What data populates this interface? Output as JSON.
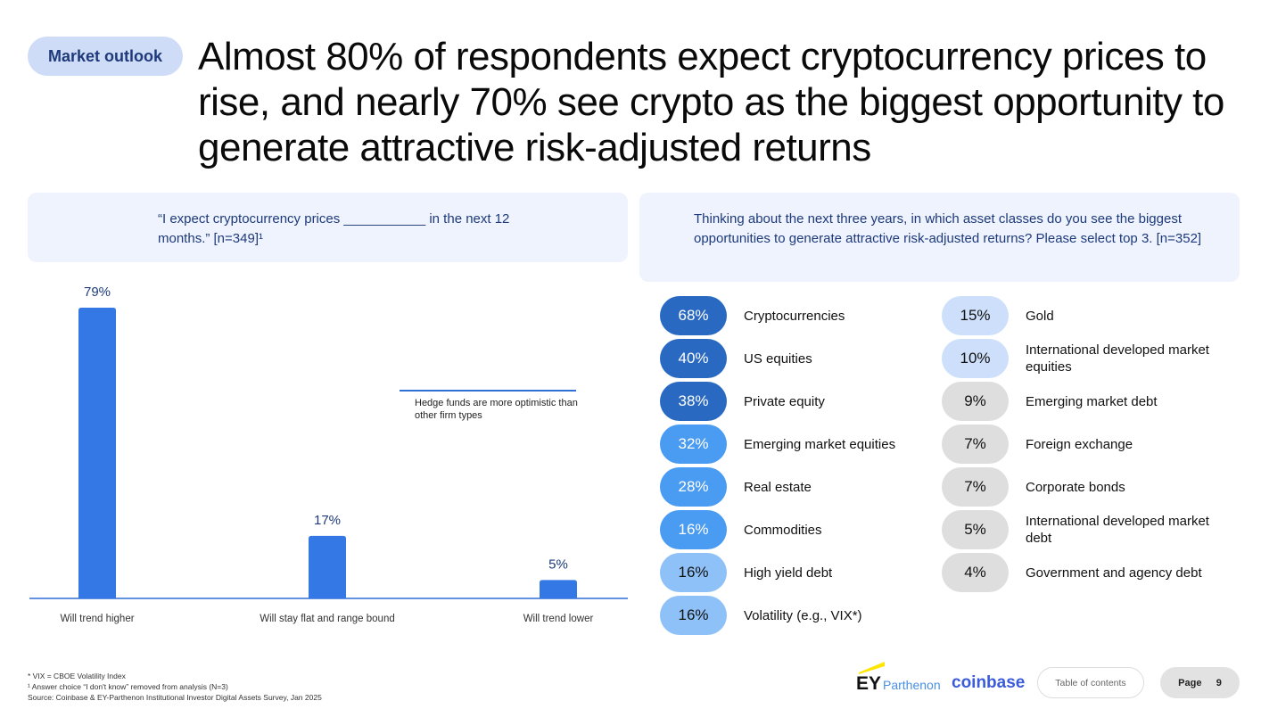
{
  "tag": "Market outlook",
  "title": "Almost 80% of respondents expect cryptocurrency prices to rise, and nearly 70% see crypto as the biggest opportunity to generate attractive risk-adjusted returns",
  "left_question": "“I expect cryptocurrency prices ___________ in the next 12 months.” [n=349]¹",
  "right_question": "Thinking about the next three years, in which asset classes do you see the biggest opportunities to generate attractive risk-adjusted returns? Please select top 3. [n=352]",
  "annotation": "Hedge funds are more optimistic than other firm types",
  "chart_data": {
    "type": "bar",
    "categories": [
      "Will trend higher",
      "Will stay flat and range bound",
      "Will trend lower"
    ],
    "values": [
      79,
      17,
      5
    ],
    "data_labels": [
      "79%",
      "17%",
      "5%"
    ],
    "ylim": [
      0,
      79
    ],
    "color": "#3478e5"
  },
  "asset_classes": [
    {
      "value": "68%",
      "label": "Cryptocurrencies",
      "bg": "#2a69c2",
      "fg": "#ffffff"
    },
    {
      "value": "40%",
      "label": "US equities",
      "bg": "#2a69c2",
      "fg": "#ffffff"
    },
    {
      "value": "38%",
      "label": "Private equity",
      "bg": "#2a69c2",
      "fg": "#ffffff"
    },
    {
      "value": "32%",
      "label": "Emerging market equities",
      "bg": "#4a9bf2",
      "fg": "#ffffff"
    },
    {
      "value": "28%",
      "label": "Real estate",
      "bg": "#4a9bf2",
      "fg": "#ffffff"
    },
    {
      "value": "16%",
      "label": "Commodities",
      "bg": "#4a9bf2",
      "fg": "#ffffff"
    },
    {
      "value": "16%",
      "label": "High yield debt",
      "bg": "#8dc1f7",
      "fg": "#111111"
    },
    {
      "value": "16%",
      "label": "Volatility (e.g., VIX*)",
      "bg": "#8dc1f7",
      "fg": "#111111"
    },
    {
      "value": "15%",
      "label": "Gold",
      "bg": "#cddffa",
      "fg": "#111111"
    },
    {
      "value": "10%",
      "label": "International developed market equities",
      "bg": "#cddffa",
      "fg": "#111111"
    },
    {
      "value": "9%",
      "label": "Emerging market debt",
      "bg": "#dedede",
      "fg": "#111111"
    },
    {
      "value": "7%",
      "label": "Foreign exchange",
      "bg": "#dedede",
      "fg": "#111111"
    },
    {
      "value": "7%",
      "label": "Corporate bonds",
      "bg": "#dedede",
      "fg": "#111111"
    },
    {
      "value": "5%",
      "label": "International developed market debt",
      "bg": "#dedede",
      "fg": "#111111"
    },
    {
      "value": "4%",
      "label": "Government and agency debt",
      "bg": "#dedede",
      "fg": "#111111"
    }
  ],
  "footnotes": [
    "* VIX = CBOE Volatility Index",
    "¹ Answer choice “I don't know” removed from analysis (N=3)",
    "Source: Coinbase & EY-Parthenon Institutional Investor Digital Assets Survey, Jan 2025"
  ],
  "logos": {
    "ey": "EY",
    "parthenon": "Parthenon",
    "coinbase": "coinbase"
  },
  "nav": {
    "toc": "Table of contents",
    "page_label": "Page",
    "page_number": "9"
  }
}
